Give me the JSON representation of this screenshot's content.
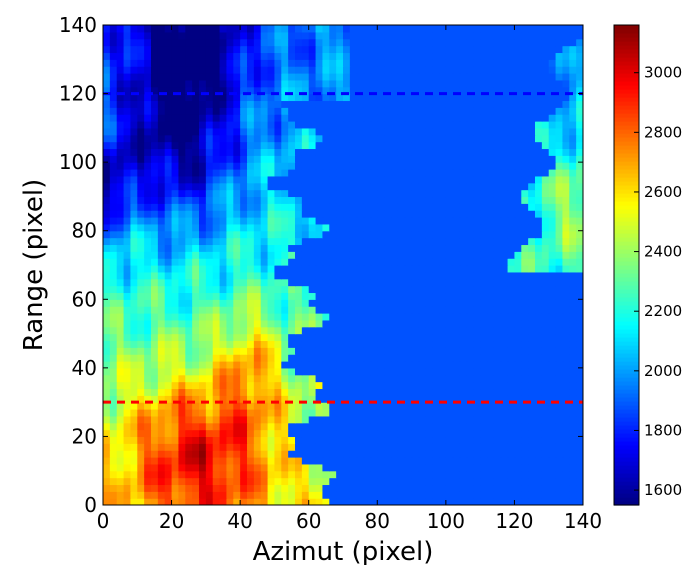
{
  "chart_data": {
    "type": "heatmap",
    "xlabel": "Azimut (pixel)",
    "ylabel": "Range (pixel)",
    "xlim": [
      0,
      140
    ],
    "ylim": [
      0,
      140
    ],
    "x_ticks": [
      0,
      20,
      40,
      60,
      80,
      100,
      120,
      140
    ],
    "y_ticks": [
      0,
      20,
      40,
      60,
      80,
      100,
      120,
      140
    ],
    "colorbar": {
      "colormap": "jet",
      "range": [
        1550,
        3160
      ],
      "ticks": [
        1600,
        1800,
        2000,
        2200,
        2400,
        2600,
        2800,
        3000
      ]
    },
    "flat_region": {
      "value": 1880,
      "description_x_from": 55,
      "x_to": 140
    },
    "horizontal_lines": [
      {
        "y": 120,
        "color": "#0000ff",
        "style": "dashed"
      },
      {
        "y": 30,
        "color": "#ff0000",
        "style": "dashed"
      }
    ],
    "grid": false
  }
}
